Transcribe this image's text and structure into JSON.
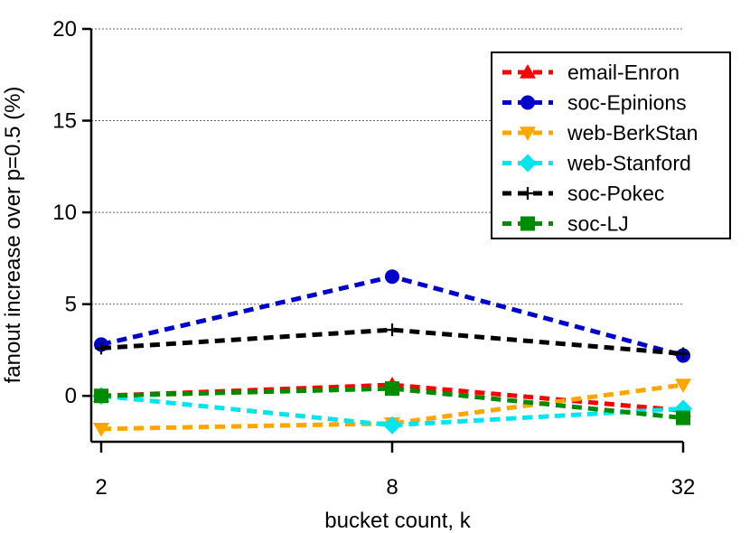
{
  "chart_data": {
    "type": "line",
    "xlabel": "bucket count, k",
    "ylabel": "fanout increase over p=0.5 (%)",
    "x_scale": "log2",
    "x": [
      2,
      8,
      32
    ],
    "x_tick_labels": [
      "2",
      "8",
      "32"
    ],
    "ylim": [
      -2.5,
      20
    ],
    "y_ticks": [
      0,
      5,
      10,
      15,
      20
    ],
    "grid": "horizontal-dotted",
    "legend_position": "top-right",
    "series": [
      {
        "name": "email-Enron",
        "values": [
          0.0,
          0.6,
          -0.8
        ],
        "color": "#ff0000",
        "marker": "triangle-up"
      },
      {
        "name": "soc-Epinions",
        "values": [
          2.8,
          6.5,
          2.2
        ],
        "color": "#0000cc",
        "marker": "circle"
      },
      {
        "name": "web-BerkStan",
        "values": [
          -1.8,
          -1.5,
          0.6
        ],
        "color": "#ffa500",
        "marker": "triangle-down"
      },
      {
        "name": "web-Stanford",
        "values": [
          0.0,
          -1.6,
          -0.7
        ],
        "color": "#00e5ee",
        "marker": "diamond"
      },
      {
        "name": "soc-Pokec",
        "values": [
          2.6,
          3.6,
          2.3
        ],
        "color": "#000000",
        "marker": "plus"
      },
      {
        "name": "soc-LJ",
        "values": [
          0.0,
          0.4,
          -1.2
        ],
        "color": "#008b00",
        "marker": "square"
      }
    ]
  }
}
